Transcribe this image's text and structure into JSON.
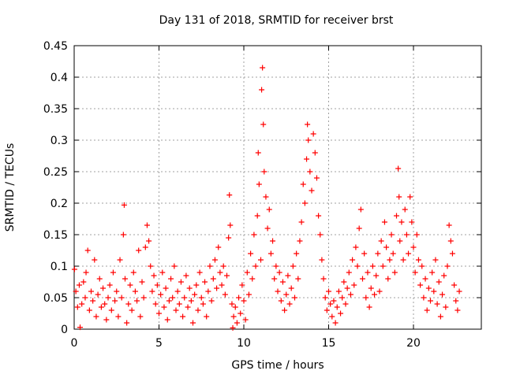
{
  "chart_data": {
    "type": "scatter",
    "title": "Day 131 of 2018, SRMTID for receiver brst",
    "xlabel": "GPS time / hours",
    "ylabel": "SRMTID / TECUs",
    "xlim": [
      0,
      24
    ],
    "ylim": [
      0,
      0.45
    ],
    "xticks": [
      0,
      5,
      10,
      15,
      20
    ],
    "yticks": [
      0,
      0.05,
      0.1,
      0.15,
      0.2,
      0.25,
      0.3,
      0.35,
      0.4,
      0.45
    ],
    "grid": true,
    "marker": "+",
    "color": "#ff0000",
    "series": [
      {
        "name": "brst",
        "points": [
          [
            0.02,
            0.095
          ],
          [
            0.1,
            0.06
          ],
          [
            0.2,
            0.035
          ],
          [
            0.3,
            0.07
          ],
          [
            0.35,
            0.003
          ],
          [
            0.45,
            0.04
          ],
          [
            0.55,
            0.075
          ],
          [
            0.65,
            0.05
          ],
          [
            0.7,
            0.09
          ],
          [
            0.8,
            0.125
          ],
          [
            0.9,
            0.03
          ],
          [
            1.0,
            0.06
          ],
          [
            1.1,
            0.045
          ],
          [
            1.2,
            0.11
          ],
          [
            1.3,
            0.02
          ],
          [
            1.4,
            0.055
          ],
          [
            1.5,
            0.08
          ],
          [
            1.6,
            0.035
          ],
          [
            1.7,
            0.065
          ],
          [
            1.8,
            0.04
          ],
          [
            1.9,
            0.015
          ],
          [
            2.0,
            0.05
          ],
          [
            2.1,
            0.07
          ],
          [
            2.2,
            0.03
          ],
          [
            2.3,
            0.09
          ],
          [
            2.4,
            0.045
          ],
          [
            2.5,
            0.06
          ],
          [
            2.6,
            0.02
          ],
          [
            2.7,
            0.11
          ],
          [
            2.8,
            0.05
          ],
          [
            2.9,
            0.15
          ],
          [
            2.95,
            0.197
          ],
          [
            3.0,
            0.08
          ],
          [
            3.1,
            0.01
          ],
          [
            3.2,
            0.04
          ],
          [
            3.3,
            0.07
          ],
          [
            3.4,
            0.03
          ],
          [
            3.5,
            0.09
          ],
          [
            3.6,
            0.06
          ],
          [
            3.7,
            0.045
          ],
          [
            3.8,
            0.125
          ],
          [
            3.9,
            0.02
          ],
          [
            4.0,
            0.075
          ],
          [
            4.1,
            0.05
          ],
          [
            4.2,
            0.13
          ],
          [
            4.3,
            0.165
          ],
          [
            4.4,
            0.14
          ],
          [
            4.5,
            0.1
          ],
          [
            4.6,
            0.06
          ],
          [
            4.7,
            0.085
          ],
          [
            4.8,
            0.04
          ],
          [
            4.9,
            0.07
          ],
          [
            5.0,
            0.025
          ],
          [
            5.1,
            0.055
          ],
          [
            5.2,
            0.09
          ],
          [
            5.3,
            0.035
          ],
          [
            5.4,
            0.065
          ],
          [
            5.5,
            0.015
          ],
          [
            5.6,
            0.045
          ],
          [
            5.7,
            0.08
          ],
          [
            5.8,
            0.05
          ],
          [
            5.9,
            0.1
          ],
          [
            6.0,
            0.03
          ],
          [
            6.1,
            0.06
          ],
          [
            6.2,
            0.04
          ],
          [
            6.3,
            0.075
          ],
          [
            6.4,
            0.02
          ],
          [
            6.5,
            0.05
          ],
          [
            6.6,
            0.085
          ],
          [
            6.7,
            0.035
          ],
          [
            6.8,
            0.065
          ],
          [
            6.9,
            0.045
          ],
          [
            7.0,
            0.01
          ],
          [
            7.1,
            0.055
          ],
          [
            7.2,
            0.07
          ],
          [
            7.3,
            0.03
          ],
          [
            7.4,
            0.09
          ],
          [
            7.5,
            0.05
          ],
          [
            7.6,
            0.04
          ],
          [
            7.7,
            0.075
          ],
          [
            7.8,
            0.02
          ],
          [
            7.9,
            0.06
          ],
          [
            8.0,
            0.1
          ],
          [
            8.1,
            0.045
          ],
          [
            8.2,
            0.08
          ],
          [
            8.3,
            0.11
          ],
          [
            8.4,
            0.065
          ],
          [
            8.5,
            0.13
          ],
          [
            8.6,
            0.09
          ],
          [
            8.7,
            0.07
          ],
          [
            8.8,
            0.1
          ],
          [
            8.9,
            0.055
          ],
          [
            9.0,
            0.085
          ],
          [
            9.1,
            0.145
          ],
          [
            9.15,
            0.213
          ],
          [
            9.2,
            0.165
          ],
          [
            9.3,
            0.04
          ],
          [
            9.35,
            0.002
          ],
          [
            9.4,
            0.02
          ],
          [
            9.5,
            0.035
          ],
          [
            9.6,
            0.01
          ],
          [
            9.7,
            0.05
          ],
          [
            9.8,
            0.025
          ],
          [
            9.9,
            0.07
          ],
          [
            10.0,
            0.045
          ],
          [
            10.1,
            0.015
          ],
          [
            10.2,
            0.09
          ],
          [
            10.3,
            0.055
          ],
          [
            10.4,
            0.12
          ],
          [
            10.5,
            0.08
          ],
          [
            10.6,
            0.15
          ],
          [
            10.7,
            0.1
          ],
          [
            10.8,
            0.18
          ],
          [
            10.85,
            0.28
          ],
          [
            10.9,
            0.23
          ],
          [
            11.0,
            0.11
          ],
          [
            11.05,
            0.38
          ],
          [
            11.1,
            0.415
          ],
          [
            11.15,
            0.325
          ],
          [
            11.2,
            0.25
          ],
          [
            11.3,
            0.21
          ],
          [
            11.4,
            0.16
          ],
          [
            11.5,
            0.19
          ],
          [
            11.6,
            0.12
          ],
          [
            11.7,
            0.14
          ],
          [
            11.8,
            0.08
          ],
          [
            11.9,
            0.1
          ],
          [
            12.0,
            0.06
          ],
          [
            12.1,
            0.09
          ],
          [
            12.2,
            0.045
          ],
          [
            12.3,
            0.075
          ],
          [
            12.4,
            0.03
          ],
          [
            12.5,
            0.055
          ],
          [
            12.6,
            0.085
          ],
          [
            12.7,
            0.04
          ],
          [
            12.8,
            0.065
          ],
          [
            12.9,
            0.1
          ],
          [
            13.0,
            0.05
          ],
          [
            13.1,
            0.12
          ],
          [
            13.2,
            0.08
          ],
          [
            13.3,
            0.14
          ],
          [
            13.4,
            0.17
          ],
          [
            13.5,
            0.23
          ],
          [
            13.6,
            0.2
          ],
          [
            13.7,
            0.27
          ],
          [
            13.75,
            0.325
          ],
          [
            13.8,
            0.3
          ],
          [
            13.9,
            0.25
          ],
          [
            14.0,
            0.22
          ],
          [
            14.1,
            0.31
          ],
          [
            14.2,
            0.28
          ],
          [
            14.3,
            0.24
          ],
          [
            14.4,
            0.18
          ],
          [
            14.5,
            0.15
          ],
          [
            14.6,
            0.11
          ],
          [
            14.7,
            0.08
          ],
          [
            14.8,
            0.05
          ],
          [
            14.9,
            0.03
          ],
          [
            15.0,
            0.06
          ],
          [
            15.1,
            0.04
          ],
          [
            15.2,
            0.02
          ],
          [
            15.3,
            0.045
          ],
          [
            15.4,
            0.01
          ],
          [
            15.5,
            0.035
          ],
          [
            15.6,
            0.06
          ],
          [
            15.7,
            0.025
          ],
          [
            15.8,
            0.05
          ],
          [
            15.9,
            0.075
          ],
          [
            16.0,
            0.04
          ],
          [
            16.1,
            0.065
          ],
          [
            16.2,
            0.09
          ],
          [
            16.3,
            0.055
          ],
          [
            16.4,
            0.11
          ],
          [
            16.5,
            0.07
          ],
          [
            16.6,
            0.13
          ],
          [
            16.7,
            0.1
          ],
          [
            16.8,
            0.16
          ],
          [
            16.9,
            0.19
          ],
          [
            17.0,
            0.08
          ],
          [
            17.1,
            0.12
          ],
          [
            17.2,
            0.05
          ],
          [
            17.3,
            0.09
          ],
          [
            17.4,
            0.035
          ],
          [
            17.5,
            0.065
          ],
          [
            17.6,
            0.1
          ],
          [
            17.7,
            0.055
          ],
          [
            17.8,
            0.085
          ],
          [
            17.9,
            0.12
          ],
          [
            18.0,
            0.06
          ],
          [
            18.1,
            0.14
          ],
          [
            18.2,
            0.1
          ],
          [
            18.3,
            0.17
          ],
          [
            18.4,
            0.13
          ],
          [
            18.5,
            0.08
          ],
          [
            18.6,
            0.11
          ],
          [
            18.7,
            0.15
          ],
          [
            18.8,
            0.12
          ],
          [
            18.9,
            0.09
          ],
          [
            19.0,
            0.18
          ],
          [
            19.1,
            0.255
          ],
          [
            19.15,
            0.21
          ],
          [
            19.2,
            0.14
          ],
          [
            19.3,
            0.17
          ],
          [
            19.4,
            0.11
          ],
          [
            19.5,
            0.19
          ],
          [
            19.6,
            0.15
          ],
          [
            19.7,
            0.12
          ],
          [
            19.8,
            0.21
          ],
          [
            19.9,
            0.17
          ],
          [
            20.0,
            0.13
          ],
          [
            20.1,
            0.09
          ],
          [
            20.2,
            0.15
          ],
          [
            20.3,
            0.11
          ],
          [
            20.4,
            0.07
          ],
          [
            20.5,
            0.1
          ],
          [
            20.6,
            0.05
          ],
          [
            20.7,
            0.08
          ],
          [
            20.8,
            0.03
          ],
          [
            20.9,
            0.065
          ],
          [
            21.0,
            0.045
          ],
          [
            21.1,
            0.09
          ],
          [
            21.2,
            0.06
          ],
          [
            21.3,
            0.11
          ],
          [
            21.4,
            0.04
          ],
          [
            21.5,
            0.075
          ],
          [
            21.6,
            0.02
          ],
          [
            21.7,
            0.055
          ],
          [
            21.8,
            0.085
          ],
          [
            21.9,
            0.035
          ],
          [
            22.0,
            0.1
          ],
          [
            22.1,
            0.165
          ],
          [
            22.2,
            0.14
          ],
          [
            22.3,
            0.12
          ],
          [
            22.4,
            0.07
          ],
          [
            22.5,
            0.045
          ],
          [
            22.6,
            0.03
          ],
          [
            22.7,
            0.06
          ]
        ]
      }
    ]
  }
}
